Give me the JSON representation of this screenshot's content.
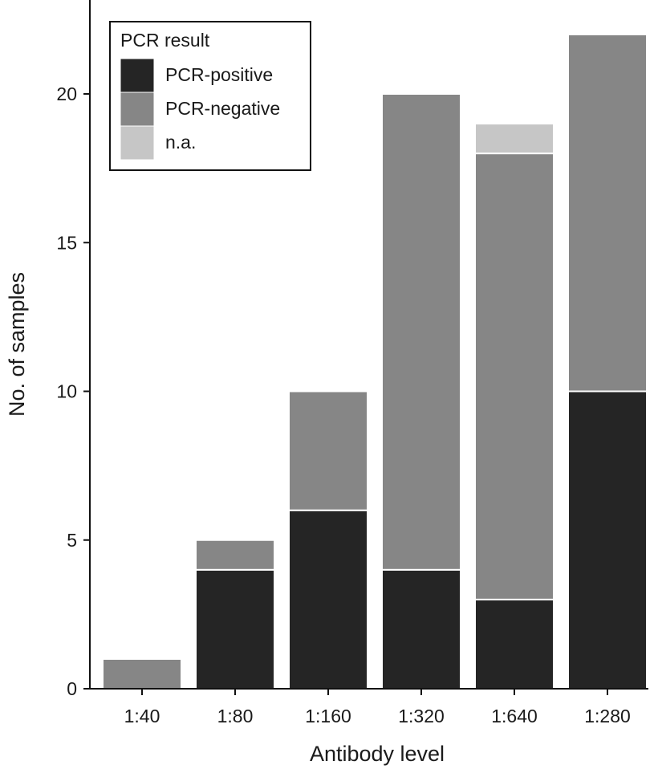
{
  "chart_data": {
    "type": "bar",
    "stacked": true,
    "xlabel": "Antibody level",
    "ylabel": "No. of samples",
    "ylim": [
      0,
      22.7
    ],
    "yticks": [
      0,
      5,
      10,
      15,
      20
    ],
    "categories": [
      "1:40",
      "1:80",
      "1:160",
      "1:320",
      "1:640",
      "1:280"
    ],
    "series": [
      {
        "name": "PCR-positive",
        "color": "#252525",
        "values": [
          0,
          4,
          6,
          4,
          3,
          10
        ]
      },
      {
        "name": "PCR-negative",
        "color": "#868686",
        "values": [
          1,
          1,
          4,
          16,
          15,
          12
        ]
      },
      {
        "name": "n.a.",
        "color": "#c6c6c6",
        "values": [
          0,
          0,
          0,
          0,
          1,
          0
        ]
      }
    ],
    "legend": {
      "title": "PCR result",
      "position": "top-left"
    },
    "grid": false
  }
}
